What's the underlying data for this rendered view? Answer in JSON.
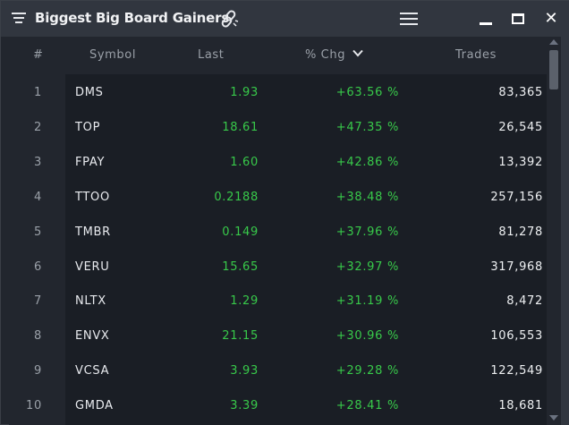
{
  "window": {
    "title": "Biggest Big Board Gainers",
    "icons": {
      "window_menu": "list-lines-icon",
      "link": "chain-link-icon",
      "menu": "hamburger-icon",
      "minimize": "minimize-icon",
      "maximize": "maximize-icon",
      "close": "close-icon"
    },
    "close_label": "✕"
  },
  "table": {
    "headers": {
      "index": "#",
      "symbol": "Symbol",
      "last": "Last",
      "chg": "% Chg",
      "trades": "Trades"
    },
    "sort": {
      "column": "chg",
      "direction": "descending",
      "icon": "chevron-down-icon"
    },
    "rows": [
      {
        "idx": "1",
        "symbol": "DMS",
        "last": "1.93",
        "chg": "+63.56 %",
        "trades": "83,365"
      },
      {
        "idx": "2",
        "symbol": "TOP",
        "last": "18.61",
        "chg": "+47.35 %",
        "trades": "26,545"
      },
      {
        "idx": "3",
        "symbol": "FPAY",
        "last": "1.60",
        "chg": "+42.86 %",
        "trades": "13,392"
      },
      {
        "idx": "4",
        "symbol": "TTOO",
        "last": "0.2188",
        "chg": "+38.48 %",
        "trades": "257,156"
      },
      {
        "idx": "5",
        "symbol": "TMBR",
        "last": "0.149",
        "chg": "+37.96 %",
        "trades": "81,278"
      },
      {
        "idx": "6",
        "symbol": "VERU",
        "last": "15.65",
        "chg": "+32.97 %",
        "trades": "317,968"
      },
      {
        "idx": "7",
        "symbol": "NLTX",
        "last": "1.29",
        "chg": "+31.19 %",
        "trades": "8,472"
      },
      {
        "idx": "8",
        "symbol": "ENVX",
        "last": "21.15",
        "chg": "+30.96 %",
        "trades": "106,553"
      },
      {
        "idx": "9",
        "symbol": "VCSA",
        "last": "3.93",
        "chg": "+29.28 %",
        "trades": "122,549"
      },
      {
        "idx": "10",
        "symbol": "GMDA",
        "last": "3.39",
        "chg": "+28.41 %",
        "trades": "18,681"
      }
    ]
  },
  "colors": {
    "gain": "#38c94a",
    "title_bar": "#31363f",
    "grid_bg": "#1a1e25"
  }
}
